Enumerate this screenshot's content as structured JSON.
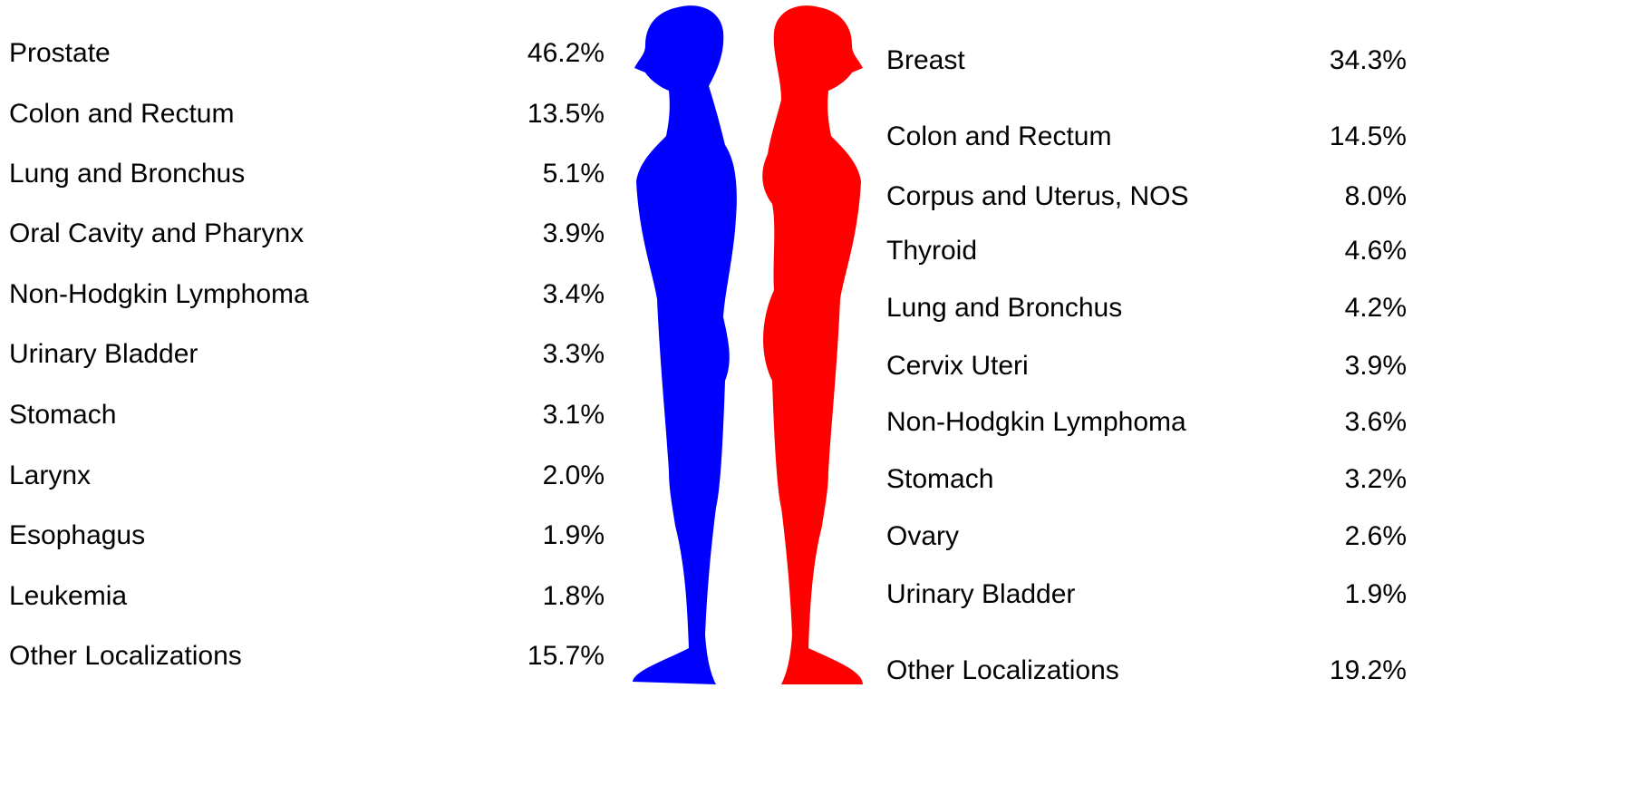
{
  "left": {
    "rows": [
      {
        "label": "Prostate",
        "value": "46.2%"
      },
      {
        "label": "Colon and Rectum",
        "value": "13.5%"
      },
      {
        "label": "Lung and Bronchus",
        "value": "5.1%"
      },
      {
        "label": "Oral Cavity and Pharynx",
        "value": "3.9%"
      },
      {
        "label": "Non-Hodgkin Lymphoma",
        "value": "3.4%"
      },
      {
        "label": "Urinary Bladder",
        "value": "3.3%"
      },
      {
        "label": "Stomach",
        "value": "3.1%"
      },
      {
        "label": "Larynx",
        "value": "2.0%"
      },
      {
        "label": "Esophagus",
        "value": "1.9%"
      },
      {
        "label": "Leukemia",
        "value": "1.8%"
      },
      {
        "label": "Other Localizations",
        "value": "15.7%"
      }
    ]
  },
  "right": {
    "rows": [
      {
        "label": "Breast",
        "value": "34.3%"
      },
      {
        "label": "Colon and Rectum",
        "value": "14.5%"
      },
      {
        "label": "Corpus and Uterus, NOS",
        "value": "8.0%"
      },
      {
        "label": "Thyroid",
        "value": "4.6%"
      },
      {
        "label": "Lung and Bronchus",
        "value": "4.2%"
      },
      {
        "label": "Cervix Uteri",
        "value": "3.9%"
      },
      {
        "label": "Non-Hodgkin Lymphoma",
        "value": "3.6%"
      },
      {
        "label": "Stomach",
        "value": "3.2%"
      },
      {
        "label": "Ovary",
        "value": "2.6%"
      },
      {
        "label": "Urinary Bladder",
        "value": "1.9%"
      },
      {
        "label": "Other Localizations",
        "value": "19.2%"
      }
    ]
  }
}
